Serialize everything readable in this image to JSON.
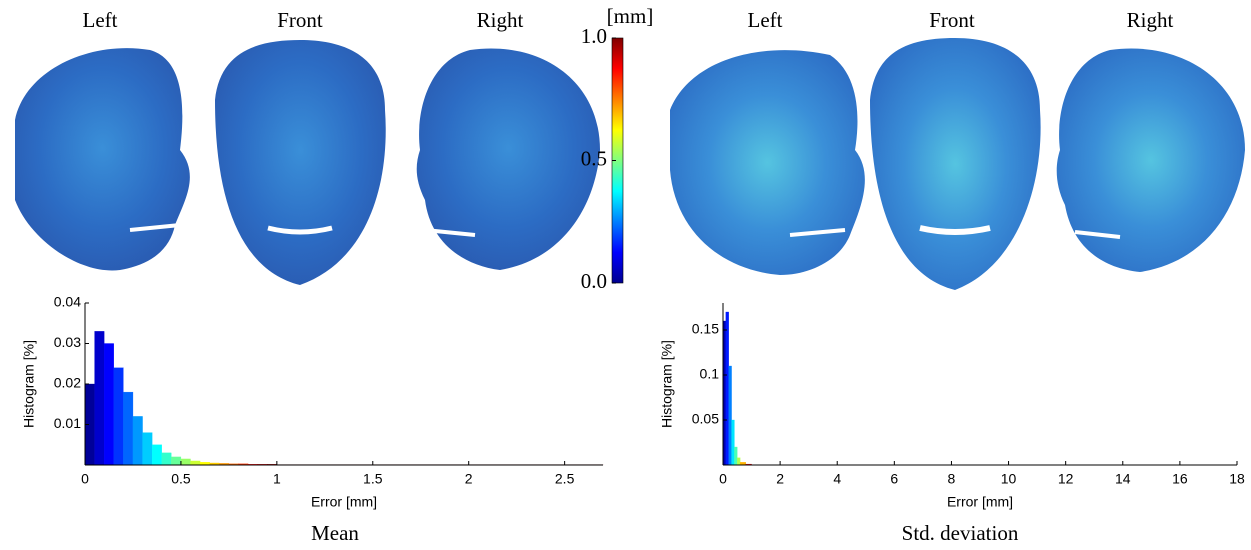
{
  "figure": {
    "panels": [
      {
        "views": [
          "Left",
          "Front",
          "Right"
        ],
        "caption": "Mean"
      },
      {
        "views": [
          "Left",
          "Front",
          "Right"
        ],
        "caption": "Std. deviation"
      }
    ],
    "colorbar": {
      "label": "[mm]",
      "lim": [
        0,
        1
      ],
      "ticks": [
        {
          "value": 0,
          "label": "0.0"
        },
        {
          "value": 0.5,
          "label": "0.5"
        },
        {
          "value": 1,
          "label": "1.0"
        }
      ]
    }
  },
  "chart_data": [
    {
      "type": "histogram",
      "xlabel": "Error [mm]",
      "ylabel": "Histogram [%]",
      "bins": [
        0,
        0.05,
        0.1,
        0.15,
        0.2,
        0.25,
        0.3,
        0.35,
        0.4,
        0.45,
        0.5,
        0.55,
        0.6,
        0.65,
        0.7,
        0.75,
        0.8,
        0.85,
        0.9,
        0.95,
        1,
        1.5,
        2,
        2.5,
        2.7
      ],
      "counts": [
        0.02,
        0.033,
        0.03,
        0.024,
        0.018,
        0.012,
        0.008,
        0.005,
        0.003,
        0.002,
        0.0015,
        0.001,
        0.0007,
        0.0005,
        0.0004,
        0.0003,
        0.0003,
        0.0002,
        0.0002,
        0.0002,
        0.0001,
        0.0001,
        0.0001,
        0.0001
      ],
      "xlim": [
        0,
        2.7
      ],
      "ylim": [
        0,
        0.04
      ],
      "xticks": [
        0,
        0.5,
        1,
        1.5,
        2,
        2.5
      ],
      "yticks": [
        0.01,
        0.02,
        0.03,
        0.04
      ]
    },
    {
      "type": "histogram",
      "xlabel": "Error [mm]",
      "ylabel": "Histogram [%]",
      "bins": [
        0,
        0.1,
        0.2,
        0.3,
        0.4,
        0.5,
        0.6,
        0.8,
        1,
        2,
        18
      ],
      "counts": [
        0.16,
        0.17,
        0.11,
        0.05,
        0.02,
        0.008,
        0.003,
        0.001,
        0.0003,
        0.0001
      ],
      "xlim": [
        0,
        18
      ],
      "ylim": [
        0,
        0.18
      ],
      "xticks": [
        0,
        2,
        4,
        6,
        8,
        10,
        12,
        14,
        16,
        18
      ],
      "yticks": [
        0.05,
        0.1,
        0.15
      ]
    }
  ]
}
